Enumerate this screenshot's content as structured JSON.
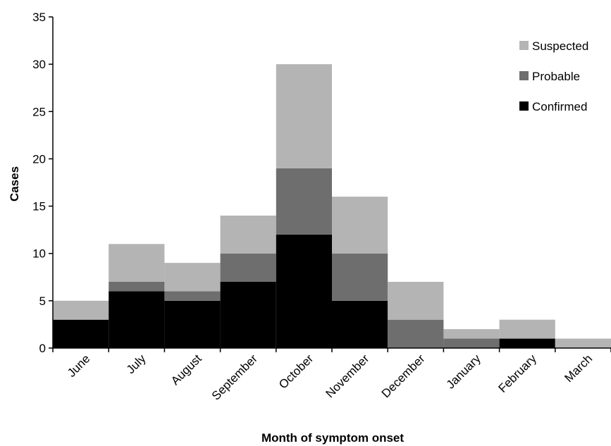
{
  "chart_data": {
    "type": "bar",
    "stacked": true,
    "categories": [
      "June",
      "July",
      "August",
      "September",
      "October",
      "November",
      "December",
      "January",
      "February",
      "March"
    ],
    "series": [
      {
        "name": "Confirmed",
        "color": "#000000",
        "values": [
          3,
          6,
          5,
          7,
          12,
          5,
          0,
          0,
          1,
          0
        ]
      },
      {
        "name": "Probable",
        "color": "#6e6e6e",
        "values": [
          0,
          1,
          1,
          3,
          7,
          5,
          3,
          1,
          0,
          0
        ]
      },
      {
        "name": "Suspected",
        "color": "#b4b4b4",
        "values": [
          2,
          4,
          3,
          4,
          11,
          6,
          4,
          1,
          2,
          1
        ]
      }
    ],
    "legend_order": [
      "Suspected",
      "Probable",
      "Confirmed"
    ],
    "xlabel": "Month of symptom onset",
    "ylabel": "Cases",
    "ylim": [
      0,
      35
    ],
    "yticks": [
      0,
      5,
      10,
      15,
      20,
      25,
      30,
      35
    ],
    "grid": false,
    "legend_position": "top-right"
  }
}
